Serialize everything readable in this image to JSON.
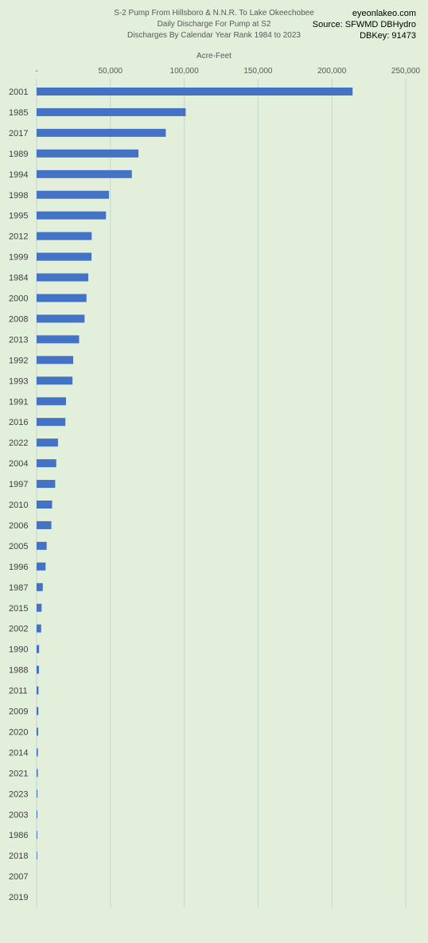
{
  "header": {
    "title_lines": [
      "S-2 Pump From Hillsboro & N.N.R. To Lake Okeechobee",
      "Daily Discharge For Pump at S2",
      "Discharges By Calendar Year Rank 1984 to 2023"
    ],
    "source_lines": [
      "eyeonlakeo.com",
      "Source: SFWMD DBHydro",
      "DBKey: 91473"
    ]
  },
  "colors": {
    "bar": "#4472c4",
    "grid": "#c8d3cf",
    "background": "#e2efda"
  },
  "chart_data": {
    "type": "bar",
    "orientation": "horizontal",
    "title": "S-2 Pump From Hillsboro & N.N.R. To Lake Okeechobee",
    "xlabel": "Acre-Feet",
    "xlim": [
      0,
      250000
    ],
    "x_ticks": [
      "-",
      "50,000",
      "100,000",
      "150,000",
      "200,000",
      "250,000"
    ],
    "x_tick_values": [
      0,
      50000,
      100000,
      150000,
      200000,
      250000
    ],
    "grid": true,
    "categories": [
      "2001",
      "1985",
      "2017",
      "1989",
      "1994",
      "1998",
      "1995",
      "2012",
      "1999",
      "1984",
      "2000",
      "2008",
      "2013",
      "1992",
      "1993",
      "1991",
      "2016",
      "2022",
      "2004",
      "1997",
      "2010",
      "2006",
      "2005",
      "1996",
      "1987",
      "2015",
      "2002",
      "1990",
      "1988",
      "2011",
      "2009",
      "2020",
      "2014",
      "2021",
      "2023",
      "2003",
      "1986",
      "2018",
      "2007",
      "2019"
    ],
    "values": [
      214000,
      101000,
      87500,
      69000,
      64500,
      49000,
      47000,
      37300,
      37200,
      35000,
      33800,
      32500,
      28800,
      24800,
      24300,
      19900,
      19500,
      14500,
      13300,
      12600,
      10500,
      10000,
      6800,
      6100,
      4200,
      3400,
      3100,
      1700,
      1600,
      1300,
      1200,
      1100,
      900,
      850,
      600,
      550,
      500,
      450,
      0,
      0
    ]
  }
}
